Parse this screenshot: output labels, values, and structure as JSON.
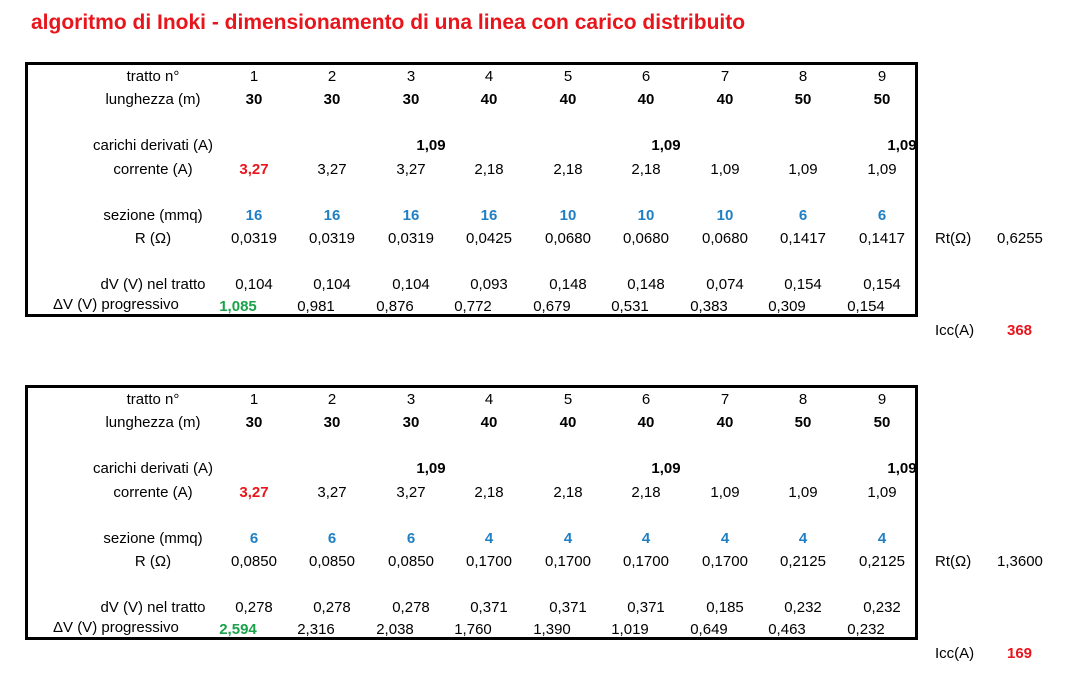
{
  "title": "algoritmo di Inoki - dimensionamento di una linea con carico distribuito",
  "colors": {
    "title": "#e8161c",
    "highlight_red": "#e8161c",
    "highlight_green": "#1aa34a",
    "section_blue": "#1f7fc4"
  },
  "tables": [
    {
      "labels": {
        "tratto": "tratto n°",
        "lunghezza": "lunghezza (m)",
        "carichi": "carichi derivati (A)",
        "corrente": "corrente (A)",
        "sezione": "sezione (mmq)",
        "r": "R (Ω)",
        "dv": "dV (V) nel tratto",
        "dvp": "ΔV (V) progressivo"
      },
      "tratto": [
        "1",
        "2",
        "3",
        "4",
        "5",
        "6",
        "7",
        "8",
        "9"
      ],
      "lunghezza": [
        "30",
        "30",
        "30",
        "40",
        "40",
        "40",
        "40",
        "50",
        "50"
      ],
      "carichi": [
        "",
        "",
        "1,09",
        "",
        "",
        "1,09",
        "",
        "",
        "1,09"
      ],
      "corrente": [
        "3,27",
        "3,27",
        "3,27",
        "2,18",
        "2,18",
        "2,18",
        "1,09",
        "1,09",
        "1,09"
      ],
      "sezione": [
        "16",
        "16",
        "16",
        "16",
        "10",
        "10",
        "10",
        "6",
        "6"
      ],
      "r": [
        "0,0319",
        "0,0319",
        "0,0319",
        "0,0425",
        "0,0680",
        "0,0680",
        "0,0680",
        "0,1417",
        "0,1417"
      ],
      "dv": [
        "0,104",
        "0,104",
        "0,104",
        "0,093",
        "0,148",
        "0,148",
        "0,074",
        "0,154",
        "0,154"
      ],
      "dvp": [
        "1,085",
        "0,981",
        "0,876",
        "0,772",
        "0,679",
        "0,531",
        "0,383",
        "0,309",
        "0,154"
      ],
      "rt_label": "Rt(Ω)",
      "rt_value": "0,6255",
      "icc_label": "Icc(A)",
      "icc_value": "368"
    },
    {
      "labels": {
        "tratto": "tratto n°",
        "lunghezza": "lunghezza (m)",
        "carichi": "carichi derivati (A)",
        "corrente": "corrente (A)",
        "sezione": "sezione (mmq)",
        "r": "R (Ω)",
        "dv": "dV (V) nel tratto",
        "dvp": "ΔV (V) progressivo"
      },
      "tratto": [
        "1",
        "2",
        "3",
        "4",
        "5",
        "6",
        "7",
        "8",
        "9"
      ],
      "lunghezza": [
        "30",
        "30",
        "30",
        "40",
        "40",
        "40",
        "40",
        "50",
        "50"
      ],
      "carichi": [
        "",
        "",
        "1,09",
        "",
        "",
        "1,09",
        "",
        "",
        "1,09"
      ],
      "corrente": [
        "3,27",
        "3,27",
        "3,27",
        "2,18",
        "2,18",
        "2,18",
        "1,09",
        "1,09",
        "1,09"
      ],
      "sezione": [
        "6",
        "6",
        "6",
        "4",
        "4",
        "4",
        "4",
        "4",
        "4"
      ],
      "r": [
        "0,0850",
        "0,0850",
        "0,0850",
        "0,1700",
        "0,1700",
        "0,1700",
        "0,1700",
        "0,2125",
        "0,2125"
      ],
      "dv": [
        "0,278",
        "0,278",
        "0,278",
        "0,371",
        "0,371",
        "0,371",
        "0,185",
        "0,232",
        "0,232"
      ],
      "dvp": [
        "2,594",
        "2,316",
        "2,038",
        "1,760",
        "1,390",
        "1,019",
        "0,649",
        "0,463",
        "0,232"
      ],
      "rt_label": "Rt(Ω)",
      "rt_value": "1,3600",
      "icc_label": "Icc(A)",
      "icc_value": "169"
    }
  ]
}
